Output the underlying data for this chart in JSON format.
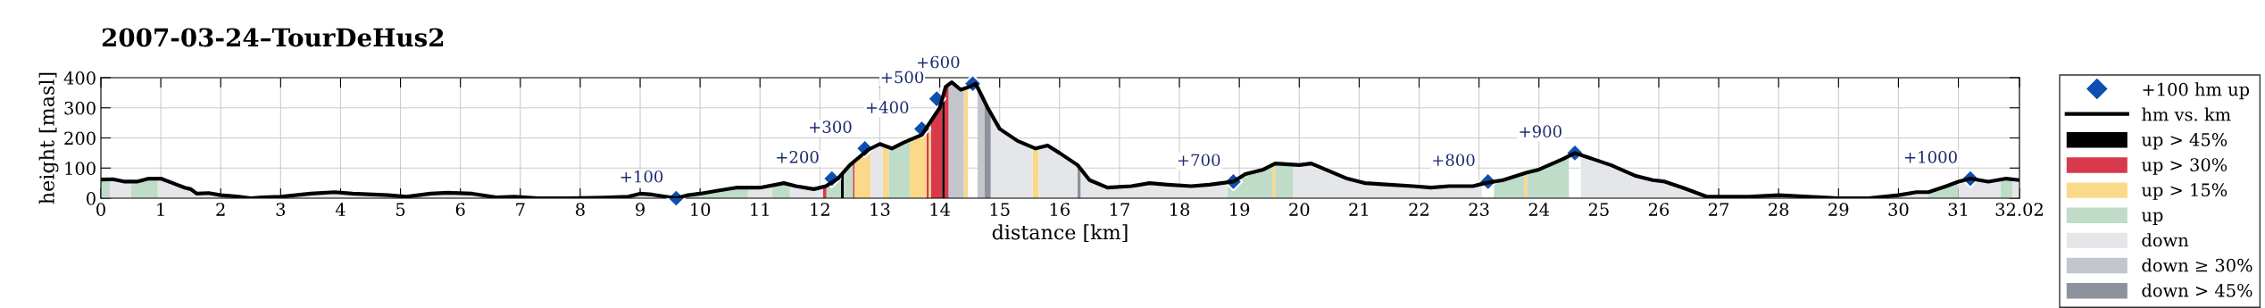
{
  "chart_data": {
    "type": "line",
    "title": "2007-03-24–TourDeHus2",
    "xlabel": "distance [km]",
    "ylabel": "height [masl]",
    "xlim": [
      0,
      32.02
    ],
    "xticks": [
      0,
      1,
      2,
      3,
      4,
      5,
      6,
      7,
      8,
      9,
      10,
      11,
      12,
      13,
      14,
      15,
      16,
      17,
      18,
      19,
      20,
      21,
      22,
      23,
      24,
      25,
      26,
      27,
      28,
      29,
      30,
      31,
      32.02
    ],
    "ylim": [
      0,
      400
    ],
    "yticks": [
      0,
      100,
      200,
      300,
      400
    ],
    "grid": true,
    "legend": "right",
    "annotations": [
      {
        "text": "+100",
        "x": 9.6,
        "y": 0
      },
      {
        "text": "+200",
        "x": 12.2,
        "y": 65
      },
      {
        "text": "+300",
        "x": 12.75,
        "y": 165
      },
      {
        "text": "+400",
        "x": 13.7,
        "y": 230
      },
      {
        "text": "+500",
        "x": 13.95,
        "y": 330
      },
      {
        "text": "+600",
        "x": 14.55,
        "y": 380
      },
      {
        "text": "+700",
        "x": 18.9,
        "y": 55
      },
      {
        "text": "+800",
        "x": 23.15,
        "y": 55
      },
      {
        "text": "+900",
        "x": 24.6,
        "y": 150
      },
      {
        "text": "+1000",
        "x": 31.2,
        "y": 65
      }
    ],
    "series": [
      {
        "name": "+100 hm up",
        "type": "scatter",
        "marker": "diamond",
        "color": "#0d4fb0",
        "x": [
          9.6,
          12.2,
          12.75,
          13.7,
          13.95,
          14.55,
          18.9,
          23.15,
          24.6,
          31.2
        ],
        "values": [
          0,
          65,
          165,
          230,
          330,
          380,
          55,
          55,
          150,
          65
        ]
      },
      {
        "name": "hm vs. km",
        "color": "#000000",
        "line_style": "solid",
        "x": [
          0,
          0.2,
          0.4,
          0.6,
          0.8,
          1.0,
          1.2,
          1.4,
          1.5,
          1.6,
          1.8,
          2.0,
          2.3,
          2.5,
          2.7,
          3.0,
          3.5,
          3.9,
          4.2,
          4.8,
          5.1,
          5.5,
          5.8,
          6.2,
          6.6,
          6.9,
          7.3,
          7.8,
          8.4,
          8.8,
          9.0,
          9.2,
          9.6,
          9.8,
          10.0,
          10.3,
          10.6,
          11.0,
          11.4,
          11.6,
          11.9,
          12.1,
          12.3,
          12.5,
          12.8,
          13.0,
          13.2,
          13.4,
          13.7,
          14.0,
          14.1,
          14.2,
          14.35,
          14.5,
          14.6,
          14.8,
          15.0,
          15.3,
          15.6,
          15.8,
          16.0,
          16.3,
          16.5,
          16.8,
          17.2,
          17.5,
          17.8,
          18.2,
          18.5,
          18.9,
          19.1,
          19.4,
          19.6,
          20.0,
          20.2,
          20.5,
          20.8,
          21.1,
          21.5,
          21.9,
          22.2,
          22.5,
          22.9,
          23.1,
          23.4,
          23.8,
          24.0,
          24.4,
          24.6,
          24.9,
          25.2,
          25.6,
          25.9,
          26.1,
          26.4,
          26.8,
          27.5,
          28.0,
          28.5,
          29.0,
          29.5,
          30.0,
          30.3,
          30.5,
          30.8,
          31.0,
          31.2,
          31.5,
          31.8,
          32.02
        ],
        "values": [
          62,
          63,
          55,
          55,
          65,
          65,
          50,
          35,
          30,
          15,
          17,
          10,
          5,
          0,
          3,
          5,
          15,
          20,
          15,
          10,
          5,
          15,
          18,
          15,
          3,
          5,
          0,
          0,
          2,
          5,
          15,
          12,
          0,
          10,
          15,
          25,
          35,
          35,
          50,
          40,
          30,
          40,
          65,
          110,
          160,
          180,
          165,
          185,
          210,
          300,
          370,
          385,
          360,
          370,
          380,
          300,
          230,
          190,
          165,
          175,
          150,
          110,
          60,
          35,
          40,
          50,
          45,
          40,
          45,
          55,
          80,
          95,
          115,
          110,
          115,
          90,
          65,
          50,
          45,
          40,
          35,
          40,
          40,
          50,
          60,
          85,
          95,
          130,
          150,
          130,
          110,
          75,
          60,
          55,
          35,
          5,
          5,
          10,
          5,
          0,
          0,
          10,
          20,
          20,
          40,
          55,
          65,
          55,
          65,
          60
        ]
      },
      {
        "name": "up > 45%",
        "type": "area",
        "color": "#000000",
        "x": [
          12.35,
          12.4,
          13.2,
          14.04,
          14.08
        ],
        "values": [
          76,
          87,
          null,
          325,
          355
        ]
      },
      {
        "name": "up > 30%",
        "type": "area",
        "color": "#d83a4c",
        "x": [
          12.05,
          12.11,
          12.4,
          12.55,
          12.58,
          13.2,
          13.78,
          13.82,
          13.84,
          13.85,
          14.04,
          14.06,
          14.08,
          14.1,
          14.15
        ],
        "values": [
          38,
          44,
          null,
          118,
          123,
          null,
          234,
          246,
          null,
          255,
          325,
          null,
          355,
          370,
          378
        ]
      },
      {
        "name": "up > 15%",
        "type": "area",
        "color": "#fbd98a",
        "x": [
          12.58,
          12.85,
          12.95,
          13.05,
          13.15,
          13.3,
          13.5,
          13.78,
          13.8,
          13.82,
          13.85,
          14.2,
          14.4,
          14.47,
          15.0,
          15.55,
          15.65,
          17.0,
          19.55,
          19.6,
          21.0,
          23.75,
          23.8
        ],
        "values": [
          123,
          165,
          null,
          176,
          169,
          null,
          193,
          234,
          null,
          246,
          255,
          null,
          363,
          368,
          null,
          169,
          168,
          null,
          110,
          115,
          null,
          82,
          85
        ]
      },
      {
        "name": "up",
        "type": "area",
        "color": "#bfdcc8",
        "x": [
          0,
          0.15,
          0.3,
          0.5,
          0.6,
          0.8,
          0.95,
          5.0,
          9.8,
          10.0,
          10.3,
          10.6,
          10.8,
          11.0,
          11.2,
          11.4,
          11.5,
          11.8,
          12.11,
          12.3,
          12.35,
          12.37,
          12.4,
          12.5,
          12.55,
          13.0,
          13.15,
          13.2,
          13.4,
          13.5,
          16.0,
          18.8,
          19.1,
          19.4,
          19.55,
          19.57,
          19.6,
          19.9,
          21.0,
          23.25,
          23.4,
          23.75,
          23.77,
          23.8,
          24.0,
          24.4,
          24.5,
          27.0,
          30.5,
          30.8,
          31.0,
          31.3,
          31.7,
          31.8,
          31.9
        ],
        "values": [
          62,
          63,
          null,
          55,
          55,
          65,
          65,
          null,
          10,
          15,
          25,
          35,
          35,
          null,
          42,
          50,
          45,
          null,
          44,
          65,
          76,
          null,
          87,
          110,
          118,
          null,
          169,
          165,
          185,
          193,
          null,
          52,
          80,
          95,
          110,
          null,
          115,
          111,
          null,
          56,
          60,
          82,
          null,
          85,
          95,
          130,
          140,
          null,
          20,
          40,
          55,
          null,
          62,
          65,
          63
        ]
      },
      {
        "name": "down",
        "type": "area",
        "color": "#e5e6ea",
        "x": [
          0.15,
          0.2,
          0.4,
          0.5,
          0.7,
          0.95,
          1.0,
          1.2,
          1.4,
          1.5,
          1.6,
          1.8,
          2.0,
          2.3,
          2.5,
          2.7,
          3.0,
          3.5,
          3.9,
          4.2,
          4.8,
          5.1,
          5.5,
          5.8,
          6.2,
          6.6,
          6.9,
          7.3,
          7.8,
          8.4,
          8.8,
          9.0,
          9.2,
          9.8,
          10.3,
          10.8,
          11.0,
          11.2,
          11.3,
          11.5,
          11.6,
          11.9,
          12.05,
          12.5,
          12.85,
          13.0,
          13.05,
          14.0,
          14.85,
          15.0,
          15.3,
          15.55,
          15.6,
          15.65,
          15.8,
          16.0,
          16.3,
          16.32,
          16.35,
          16.5,
          16.8,
          17.2,
          17.5,
          17.8,
          18.2,
          18.5,
          18.8,
          19.3,
          19.9,
          20.0,
          20.2,
          20.5,
          20.8,
          21.1,
          21.5,
          21.9,
          22.2,
          22.5,
          22.9,
          23.05,
          23.9,
          24.7,
          24.9,
          25.2,
          25.6,
          25.9,
          26.1,
          26.4,
          26.8,
          27.5,
          28.0,
          28.5,
          29.0,
          29.5,
          30.0,
          30.3,
          30.5,
          30.7,
          31.0,
          31.5,
          31.7,
          31.8,
          31.9,
          32.02
        ],
        "values": [
          63,
          63,
          55,
          55,
          null,
          65,
          65,
          50,
          35,
          30,
          15,
          17,
          10,
          5,
          0,
          3,
          5,
          15,
          20,
          15,
          10,
          5,
          15,
          18,
          15,
          3,
          5,
          0,
          0,
          2,
          5,
          15,
          12,
          10,
          null,
          35,
          35,
          42,
          null,
          45,
          40,
          30,
          38,
          null,
          165,
          180,
          176,
          null,
          283,
          230,
          190,
          169,
          null,
          168,
          175,
          150,
          110,
          null,
          98,
          60,
          35,
          40,
          50,
          45,
          40,
          45,
          52,
          null,
          111,
          110,
          115,
          90,
          65,
          50,
          45,
          40,
          35,
          40,
          40,
          48,
          null,
          143,
          130,
          110,
          75,
          60,
          55,
          35,
          5,
          5,
          10,
          5,
          0,
          0,
          10,
          20,
          20,
          null,
          55,
          55,
          62,
          null,
          63,
          60
        ]
      },
      {
        "name": "down ≥ 30%",
        "type": "area",
        "color": "#c4c6ce",
        "x": [
          14.15,
          14.2,
          14.35,
          14.4,
          14.5,
          14.63,
          14.75
        ],
        "values": [
          378,
          385,
          360,
          363,
          null,
          368,
          320
        ]
      },
      {
        "name": "down > 45%",
        "type": "area",
        "color": "#8e929e",
        "x": [
          14.75,
          14.85,
          15.5,
          16.3,
          16.35
        ],
        "values": [
          320,
          283,
          null,
          110,
          98
        ]
      }
    ]
  }
}
